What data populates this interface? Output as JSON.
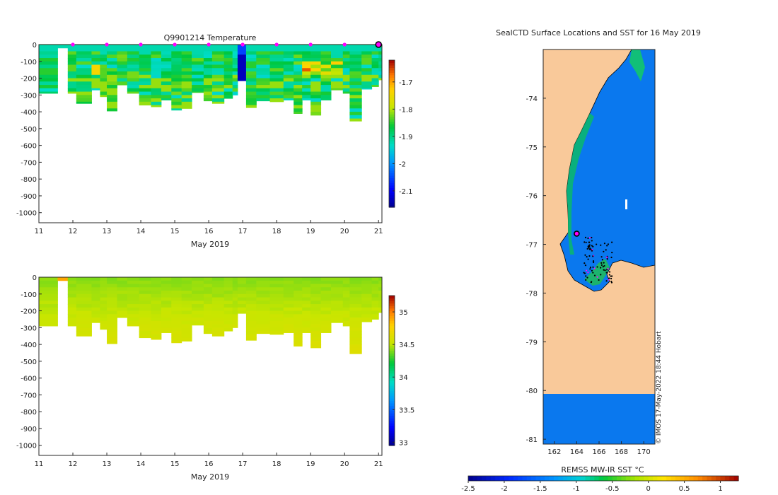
{
  "chart_data": [
    {
      "id": "temperature",
      "type": "heatmap",
      "title": "Q9901214  Temperature",
      "xlabel": "May 2019",
      "ylabel": "",
      "x_ticks": [
        "11",
        "12",
        "13",
        "14",
        "15",
        "16",
        "17",
        "18",
        "19",
        "20",
        "21"
      ],
      "x_range": [
        11,
        21.1
      ],
      "y_ticks": [
        "0",
        "-100",
        "-200",
        "-300",
        "-400",
        "-500",
        "-600",
        "-700",
        "-800",
        "-900",
        "-1000"
      ],
      "y_range": [
        -1060,
        0
      ],
      "colorbar_ticks": [
        "-1.7",
        "-1.8",
        "-1.9",
        "-2",
        "-2.1"
      ],
      "colorbar_values": [
        -1.7,
        -1.8,
        -1.9,
        -2.0,
        -2.1
      ],
      "colorbar_range": [
        -2.16,
        -1.62
      ],
      "profile_markers_day": [
        12,
        13,
        14,
        15,
        16,
        17,
        18,
        19,
        20
      ],
      "current_profile_day": 21,
      "profiles": [
        {
          "day": 11.0,
          "depth": 290
        },
        {
          "day": 11.55,
          "depth": 20
        },
        {
          "day": 11.85,
          "depth": 290
        },
        {
          "day": 12.1,
          "depth": 350
        },
        {
          "day": 12.55,
          "depth": 270
        },
        {
          "day": 12.8,
          "depth": 310
        },
        {
          "day": 13.0,
          "depth": 395
        },
        {
          "day": 13.3,
          "depth": 240
        },
        {
          "day": 13.6,
          "depth": 290
        },
        {
          "day": 13.95,
          "depth": 360
        },
        {
          "day": 14.3,
          "depth": 370
        },
        {
          "day": 14.6,
          "depth": 330
        },
        {
          "day": 14.9,
          "depth": 390
        },
        {
          "day": 15.2,
          "depth": 380
        },
        {
          "day": 15.5,
          "depth": 285
        },
        {
          "day": 15.85,
          "depth": 335
        },
        {
          "day": 16.1,
          "depth": 350
        },
        {
          "day": 16.45,
          "depth": 320
        },
        {
          "day": 16.7,
          "depth": 300
        },
        {
          "day": 16.85,
          "depth": 215
        },
        {
          "day": 17.1,
          "depth": 375
        },
        {
          "day": 17.4,
          "depth": 335
        },
        {
          "day": 17.8,
          "depth": 340
        },
        {
          "day": 18.2,
          "depth": 330
        },
        {
          "day": 18.5,
          "depth": 410
        },
        {
          "day": 18.75,
          "depth": 330
        },
        {
          "day": 19.0,
          "depth": 420
        },
        {
          "day": 19.3,
          "depth": 330
        },
        {
          "day": 19.6,
          "depth": 270
        },
        {
          "day": 19.95,
          "depth": 290
        },
        {
          "day": 20.15,
          "depth": 455
        },
        {
          "day": 20.5,
          "depth": 265
        },
        {
          "day": 20.8,
          "depth": 250
        },
        {
          "day": 21.0,
          "depth": 210
        }
      ]
    },
    {
      "id": "salinity",
      "type": "heatmap",
      "title": "",
      "xlabel": "May 2019",
      "ylabel": "",
      "x_ticks": [
        "11",
        "12",
        "13",
        "14",
        "15",
        "16",
        "17",
        "18",
        "19",
        "20",
        "21"
      ],
      "x_range": [
        11,
        21.1
      ],
      "y_ticks": [
        "0",
        "-100",
        "-200",
        "-300",
        "-400",
        "-500",
        "-600",
        "-700",
        "-800",
        "-900",
        "-1000"
      ],
      "y_range": [
        -1060,
        0
      ],
      "colorbar_ticks": [
        "35",
        "34.5",
        "34",
        "33.5",
        "33"
      ],
      "colorbar_values": [
        35,
        34.5,
        34,
        33.5,
        33
      ],
      "colorbar_range": [
        32.95,
        35.25
      ]
    },
    {
      "id": "sst_map",
      "type": "heatmap",
      "title": "SealCTD Surface Locations and SST for 16 May 2019",
      "xlabel": "",
      "ylabel": "",
      "x_ticks": [
        "162",
        "164",
        "166",
        "168",
        "170"
      ],
      "x_range": [
        161,
        171
      ],
      "y_ticks": [
        "-74",
        "-75",
        "-76",
        "-77",
        "-78",
        "-79",
        "-80",
        "-81"
      ],
      "y_range": [
        -81.1,
        -73.0
      ],
      "colorbar_label": "REMSS MW-IR SST °C",
      "colorbar_ticks": [
        "-2.5",
        "-2",
        "-1.5",
        "-1",
        "-0.5",
        "0",
        "0.5",
        "1"
      ],
      "colorbar_values": [
        -2.5,
        -2,
        -1.5,
        -1,
        -0.5,
        0,
        0.5,
        1
      ],
      "colorbar_range": [
        -2.5,
        1.25
      ],
      "current_location": {
        "lon": 164.0,
        "lat": -76.78
      },
      "watermark": "© IMOS 17-May-2022 18:44 Hobart"
    }
  ],
  "colors": {
    "land": "#f9c99a",
    "ocean": "#0a78ee",
    "marker_magenta": "#ff00ff",
    "salinity_base": "#fdbf0d"
  }
}
